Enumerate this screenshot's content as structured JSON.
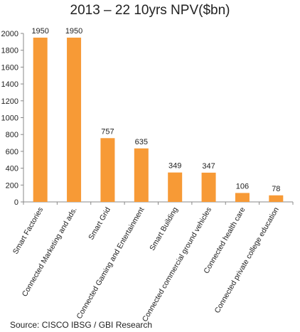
{
  "chart_data": {
    "type": "bar",
    "title": "2013 – 22 10yrs NPV($bn)",
    "categories": [
      "Smart Factories",
      "Connected Marketing and ads.",
      "Smart Grid",
      "Connected Gaming and Entertainment",
      "Smart Building",
      "Connected commercial ground  vehicles",
      "Connected health care",
      "Connected private college education"
    ],
    "values": [
      1950,
      1950,
      757,
      635,
      349,
      347,
      106,
      78
    ],
    "data_labels": [
      "1950",
      "1950",
      "757",
      "635",
      "349",
      "347",
      "106",
      "78"
    ],
    "ylim": [
      0,
      2000
    ],
    "yticks": [
      0,
      200,
      400,
      600,
      800,
      1000,
      1200,
      1400,
      1600,
      1800,
      2000
    ],
    "grid": false,
    "legend": "none",
    "bar_color": "#F79A36"
  },
  "source": "Source: CISCO IBSG / GBI Research"
}
